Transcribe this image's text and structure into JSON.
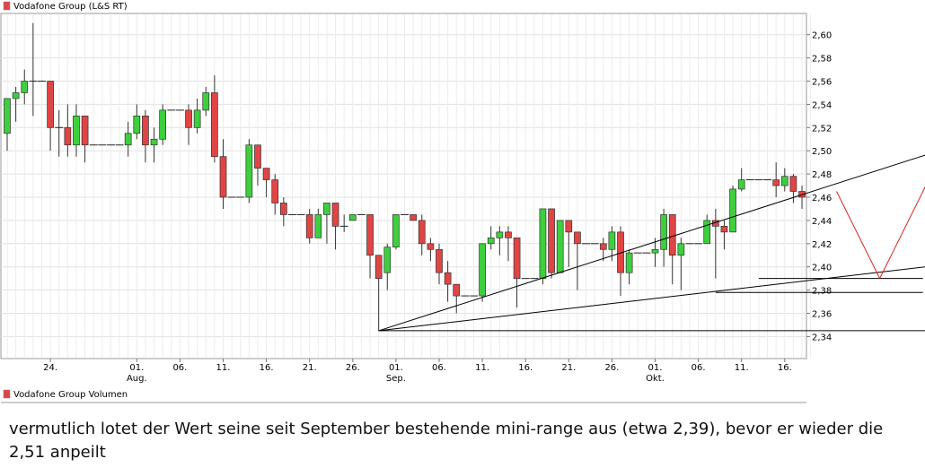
{
  "chart_data": {
    "type": "candlestick",
    "title": "Vodafone Group (L&S RT)",
    "volume_title": "Vodafone Group Volumen",
    "legend_color": "#e04545",
    "up_color": "#3ecf3e",
    "down_color": "#e04545",
    "ylim": [
      2.32,
      2.62
    ],
    "y_ticks": [
      "2,60",
      "2,58",
      "2,56",
      "2,54",
      "2,52",
      "2,50",
      "2,48",
      "2,46",
      "2,44",
      "2,42",
      "2,40",
      "2,38",
      "2,36",
      "2,34"
    ],
    "x_ticks": [
      {
        "i": 5,
        "label": "24.",
        "sub": ""
      },
      {
        "i": 15,
        "label": "01.",
        "sub": "Aug."
      },
      {
        "i": 20,
        "label": "06.",
        "sub": ""
      },
      {
        "i": 25,
        "label": "11.",
        "sub": ""
      },
      {
        "i": 30,
        "label": "16.",
        "sub": ""
      },
      {
        "i": 35,
        "label": "21.",
        "sub": ""
      },
      {
        "i": 40,
        "label": "26.",
        "sub": ""
      },
      {
        "i": 45,
        "label": "01.",
        "sub": "Sep."
      },
      {
        "i": 50,
        "label": "06.",
        "sub": ""
      },
      {
        "i": 55,
        "label": "11.",
        "sub": ""
      },
      {
        "i": 60,
        "label": "16.",
        "sub": ""
      },
      {
        "i": 65,
        "label": "21.",
        "sub": ""
      },
      {
        "i": 70,
        "label": "26.",
        "sub": ""
      },
      {
        "i": 75,
        "label": "01.",
        "sub": "Okt."
      },
      {
        "i": 80,
        "label": "06.",
        "sub": ""
      },
      {
        "i": 85,
        "label": "11.",
        "sub": ""
      },
      {
        "i": 90,
        "label": "16.",
        "sub": ""
      }
    ],
    "candles": [
      [
        2.515,
        2.545,
        2.545,
        2.5
      ],
      [
        2.545,
        2.55,
        2.555,
        2.525
      ],
      [
        2.55,
        2.56,
        2.57,
        2.54
      ],
      [
        2.56,
        2.56,
        2.61,
        2.53
      ],
      [
        2.56,
        2.56,
        2.56,
        2.56
      ],
      [
        2.56,
        2.52,
        2.56,
        2.5
      ],
      [
        2.52,
        2.52,
        2.535,
        2.495
      ],
      [
        2.52,
        2.505,
        2.54,
        2.495
      ],
      [
        2.505,
        2.53,
        2.54,
        2.495
      ],
      [
        2.53,
        2.505,
        2.53,
        2.49
      ],
      [
        2.505,
        2.505,
        2.505,
        2.505
      ],
      [
        2.505,
        2.505,
        2.505,
        2.505
      ],
      [
        2.505,
        2.505,
        2.505,
        2.505
      ],
      [
        2.505,
        2.505,
        2.505,
        2.505
      ],
      [
        2.505,
        2.515,
        2.525,
        2.495
      ],
      [
        2.515,
        2.53,
        2.54,
        2.51
      ],
      [
        2.53,
        2.505,
        2.535,
        2.49
      ],
      [
        2.505,
        2.51,
        2.52,
        2.49
      ],
      [
        2.51,
        2.535,
        2.54,
        2.505
      ],
      [
        2.535,
        2.535,
        2.535,
        2.535
      ],
      [
        2.535,
        2.535,
        2.535,
        2.535
      ],
      [
        2.535,
        2.52,
        2.54,
        2.505
      ],
      [
        2.52,
        2.535,
        2.545,
        2.515
      ],
      [
        2.535,
        2.55,
        2.555,
        2.53
      ],
      [
        2.55,
        2.495,
        2.565,
        2.49
      ],
      [
        2.495,
        2.46,
        2.51,
        2.45
      ],
      [
        2.46,
        2.46,
        2.46,
        2.46
      ],
      [
        2.46,
        2.46,
        2.46,
        2.46
      ],
      [
        2.46,
        2.505,
        2.51,
        2.455
      ],
      [
        2.505,
        2.485,
        2.505,
        2.47
      ],
      [
        2.485,
        2.475,
        2.485,
        2.46
      ],
      [
        2.475,
        2.455,
        2.48,
        2.445
      ],
      [
        2.455,
        2.445,
        2.46,
        2.435
      ],
      [
        2.445,
        2.445,
        2.445,
        2.445
      ],
      [
        2.445,
        2.445,
        2.445,
        2.445
      ],
      [
        2.445,
        2.425,
        2.45,
        2.42
      ],
      [
        2.425,
        2.445,
        2.45,
        2.425
      ],
      [
        2.445,
        2.455,
        2.455,
        2.42
      ],
      [
        2.455,
        2.435,
        2.45,
        2.415
      ],
      [
        2.435,
        2.435,
        2.445,
        2.43
      ],
      [
        2.44,
        2.445,
        2.445,
        2.44
      ],
      [
        2.445,
        2.445,
        2.445,
        2.445
      ],
      [
        2.445,
        2.41,
        2.445,
        2.39
      ],
      [
        2.41,
        2.39,
        2.41,
        2.345
      ],
      [
        2.395,
        2.417,
        2.42,
        2.38
      ],
      [
        2.417,
        2.445,
        2.445,
        2.415
      ],
      [
        2.445,
        2.445,
        2.445,
        2.445
      ],
      [
        2.445,
        2.44,
        2.445,
        2.44
      ],
      [
        2.44,
        2.42,
        2.445,
        2.41
      ],
      [
        2.42,
        2.415,
        2.425,
        2.405
      ],
      [
        2.415,
        2.395,
        2.42,
        2.385
      ],
      [
        2.395,
        2.385,
        2.405,
        2.37
      ],
      [
        2.385,
        2.375,
        2.385,
        2.36
      ],
      [
        2.375,
        2.375,
        2.375,
        2.375
      ],
      [
        2.375,
        2.375,
        2.375,
        2.375
      ],
      [
        2.375,
        2.42,
        2.42,
        2.37
      ],
      [
        2.42,
        2.425,
        2.435,
        2.415
      ],
      [
        2.425,
        2.43,
        2.435,
        2.41
      ],
      [
        2.43,
        2.425,
        2.435,
        2.405
      ],
      [
        2.425,
        2.39,
        2.425,
        2.365
      ],
      [
        2.39,
        2.39,
        2.39,
        2.39
      ],
      [
        2.39,
        2.39,
        2.39,
        2.39
      ],
      [
        2.39,
        2.45,
        2.45,
        2.385
      ],
      [
        2.45,
        2.395,
        2.45,
        2.39
      ],
      [
        2.395,
        2.44,
        2.44,
        2.395
      ],
      [
        2.44,
        2.43,
        2.44,
        2.4
      ],
      [
        2.43,
        2.42,
        2.43,
        2.38
      ],
      [
        2.42,
        2.42,
        2.42,
        2.42
      ],
      [
        2.42,
        2.42,
        2.42,
        2.42
      ],
      [
        2.42,
        2.415,
        2.425,
        2.405
      ],
      [
        2.415,
        2.43,
        2.435,
        2.405
      ],
      [
        2.43,
        2.395,
        2.435,
        2.375
      ],
      [
        2.395,
        2.412,
        2.415,
        2.385
      ],
      [
        2.412,
        2.412,
        2.412,
        2.412
      ],
      [
        2.412,
        2.412,
        2.412,
        2.412
      ],
      [
        2.412,
        2.415,
        2.425,
        2.4
      ],
      [
        2.415,
        2.445,
        2.45,
        2.4
      ],
      [
        2.445,
        2.41,
        2.445,
        2.385
      ],
      [
        2.41,
        2.42,
        2.425,
        2.38
      ],
      [
        2.42,
        2.42,
        2.42,
        2.42
      ],
      [
        2.42,
        2.42,
        2.42,
        2.42
      ],
      [
        2.42,
        2.44,
        2.445,
        2.42
      ],
      [
        2.44,
        2.435,
        2.45,
        2.39
      ],
      [
        2.435,
        2.43,
        2.44,
        2.415
      ],
      [
        2.43,
        2.467,
        2.47,
        2.43
      ],
      [
        2.467,
        2.475,
        2.485,
        2.465
      ],
      [
        2.475,
        2.475,
        2.475,
        2.475
      ],
      [
        2.475,
        2.475,
        2.475,
        2.475
      ],
      [
        2.475,
        2.475,
        2.475,
        2.475
      ],
      [
        2.475,
        2.47,
        2.49,
        2.46
      ],
      [
        2.47,
        2.478,
        2.485,
        2.465
      ],
      [
        2.478,
        2.465,
        2.48,
        2.455
      ],
      [
        2.465,
        2.46,
        2.47,
        2.45
      ]
    ],
    "trend_lines": [
      {
        "from": [
          43,
          2.345
        ],
        "to": [
          112,
          2.51
        ],
        "color": "#000000"
      },
      {
        "from": [
          43,
          2.345
        ],
        "to": [
          112,
          2.405
        ],
        "color": "#000000"
      },
      {
        "from": [
          43,
          2.345
        ],
        "to": [
          107,
          2.345
        ],
        "color": "#000000"
      },
      {
        "from": [
          87,
          2.39
        ],
        "to": [
          106,
          2.39
        ],
        "color": "#000000"
      },
      {
        "from": [
          82,
          2.378
        ],
        "to": [
          106,
          2.378
        ],
        "color": "#000000"
      },
      {
        "from": [
          96,
          2.465
        ],
        "to": [
          101,
          2.39
        ],
        "color": "#dd2222"
      },
      {
        "from": [
          101,
          2.39
        ],
        "to": [
          109,
          2.51
        ],
        "color": "#dd2222"
      }
    ]
  },
  "caption": "vermutlich lotet der Wert seine seit September bestehende mini-range aus (etwa 2,39), bevor er wieder die 2,51 anpeilt"
}
